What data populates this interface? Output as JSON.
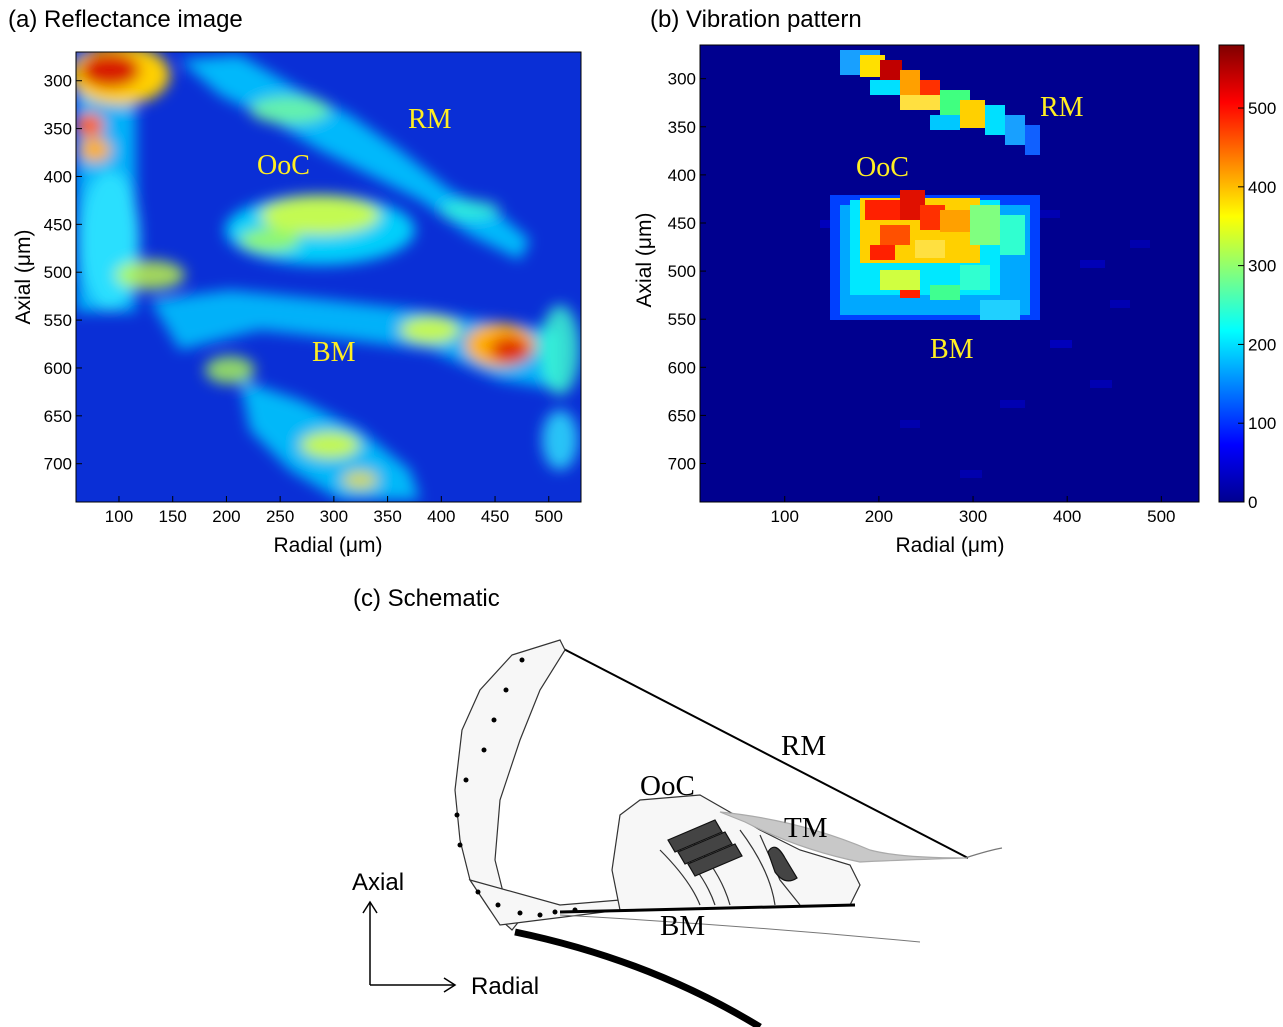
{
  "panels": {
    "a": {
      "title": "(a) Reflectance image",
      "xlabel": "Radial (μm)",
      "ylabel": "Axial (μm)",
      "xticks": [
        "100",
        "150",
        "200",
        "250",
        "300",
        "350",
        "400",
        "450",
        "500"
      ],
      "yticks": [
        "300",
        "350",
        "400",
        "450",
        "500",
        "550",
        "600",
        "650",
        "700"
      ],
      "labels": {
        "rm": "RM",
        "ooc": "OoC",
        "bm": "BM"
      }
    },
    "b": {
      "title": "(b) Vibration pattern",
      "xlabel": "Radial (μm)",
      "ylabel": "Axial (μm)",
      "xticks": [
        "100",
        "200",
        "300",
        "400",
        "500"
      ],
      "yticks": [
        "300",
        "350",
        "400",
        "450",
        "500",
        "550",
        "600",
        "650",
        "700"
      ],
      "colorbar_ticks": [
        "0",
        "100",
        "200",
        "300",
        "400",
        "500"
      ],
      "labels": {
        "rm": "RM",
        "ooc": "OoC",
        "bm": "BM"
      }
    },
    "c": {
      "title": "(c) Schematic",
      "labels": {
        "rm": "RM",
        "ooc": "OoC",
        "tm": "TM",
        "bm": "BM"
      },
      "axis_axial": "Axial",
      "axis_radial": "Radial"
    }
  },
  "chart_data": [
    {
      "type": "heatmap",
      "title": "(a) Reflectance image",
      "xlabel": "Radial (μm)",
      "ylabel": "Axial (μm)",
      "xlim": [
        60,
        530
      ],
      "ylim": [
        740,
        270
      ],
      "colormap": "jet",
      "annotations": [
        "RM",
        "OoC",
        "BM"
      ]
    },
    {
      "type": "heatmap",
      "title": "(b) Vibration pattern",
      "xlabel": "Radial (μm)",
      "ylabel": "Axial (μm)",
      "xlim": [
        10,
        540
      ],
      "ylim": [
        740,
        265
      ],
      "colorbar_range": [
        0,
        580
      ],
      "colormap": "jet",
      "annotations": [
        "RM",
        "OoC",
        "BM"
      ]
    }
  ]
}
